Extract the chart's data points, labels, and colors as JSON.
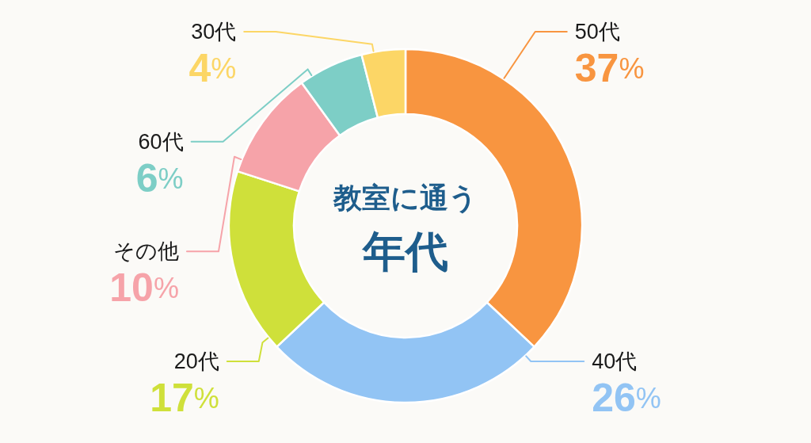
{
  "chart_data": {
    "type": "donut",
    "title": "教室に通う",
    "subtitle": "年代",
    "categories": [
      "50代",
      "40代",
      "20代",
      "その他",
      "60代",
      "30代"
    ],
    "values": [
      37,
      26,
      17,
      10,
      6,
      4
    ],
    "colors": [
      "#f89540",
      "#92c4f4",
      "#cfe03a",
      "#f6a3a9",
      "#7dcec6",
      "#fcd666"
    ],
    "value_labels": [
      "37%",
      "26%",
      "17%",
      "10%",
      "6%",
      "4%"
    ]
  }
}
